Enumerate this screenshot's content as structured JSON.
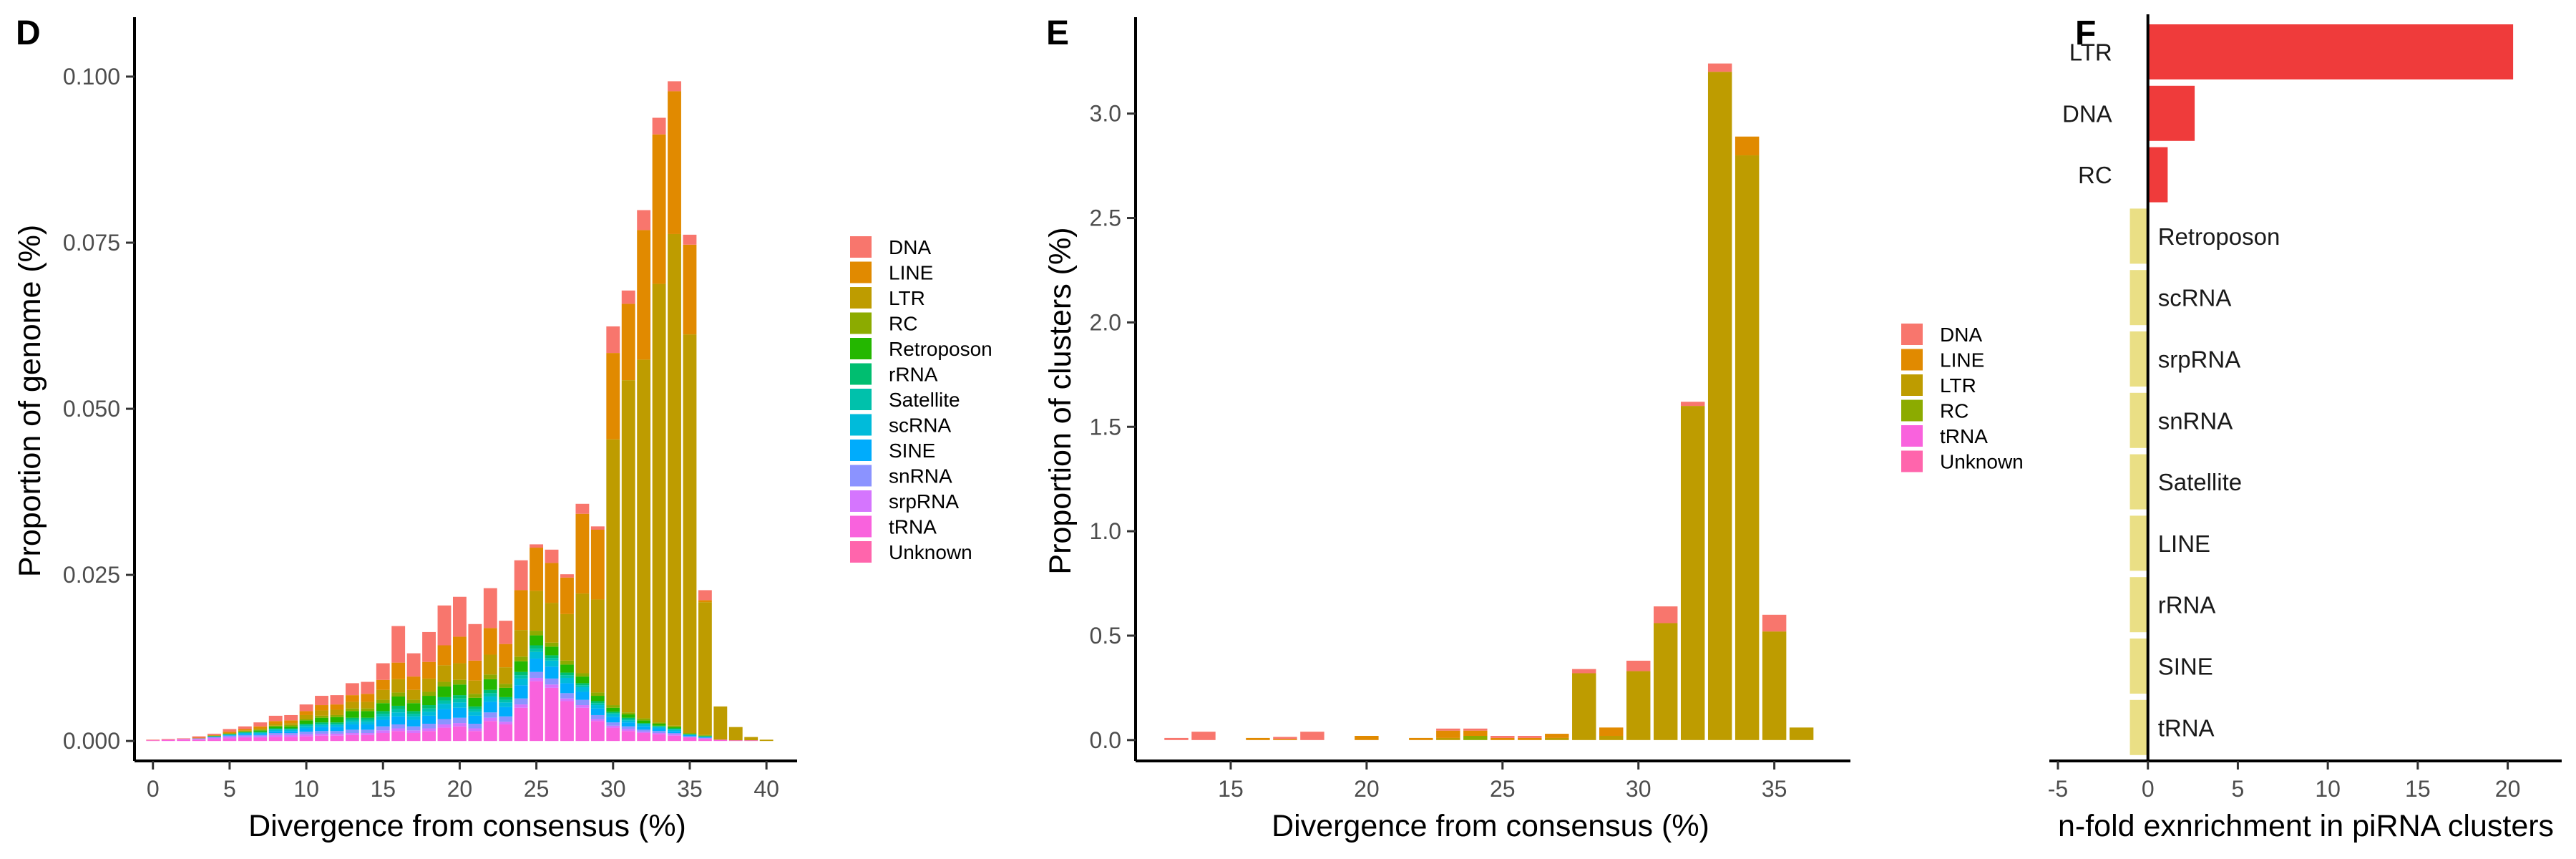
{
  "panels": {
    "D": "D",
    "E": "E",
    "F": "F"
  },
  "colors": {
    "DNA": "#F8766D",
    "LINE": "#E18A00",
    "LTR": "#BE9C00",
    "RC": "#8CAB00",
    "Retroposon": "#24B700",
    "rRNA": "#00BE70",
    "Satellite": "#00C1AB",
    "scRNA": "#00BBDA",
    "SINE": "#00ACFC",
    "snRNA": "#8B93FF",
    "srpRNA": "#D575FE",
    "tRNA": "#F962DD",
    "Unknown": "#FF65AC",
    "enriched": "#EF3B3B",
    "depleted": "#EADF85"
  },
  "chart_data": [
    {
      "panel": "D",
      "type": "bar",
      "stacked": true,
      "xlabel": "Divergence from consensus (%)",
      "ylabel": "Proportion of genome (%)",
      "xlim": [
        -1.2,
        42
      ],
      "ylim": [
        -0.003,
        0.107
      ],
      "xticks": [
        0,
        5,
        10,
        15,
        20,
        25,
        30,
        35,
        40
      ],
      "yticks": [
        0.0,
        0.025,
        0.05,
        0.075,
        0.1
      ],
      "ytick_labels": [
        "0.000",
        "0.025",
        "0.050",
        "0.075",
        "0.100"
      ],
      "legend": [
        "DNA",
        "LINE",
        "LTR",
        "RC",
        "Retroposon",
        "rRNA",
        "Satellite",
        "scRNA",
        "SINE",
        "snRNA",
        "srpRNA",
        "tRNA",
        "Unknown"
      ],
      "legend_position": "right",
      "x": [
        0,
        1,
        2,
        3,
        4,
        5,
        6,
        7,
        8,
        9,
        10,
        11,
        12,
        13,
        14,
        15,
        16,
        17,
        18,
        19,
        20,
        21,
        22,
        23,
        24,
        25,
        26,
        27,
        28,
        29,
        30,
        31,
        32,
        33,
        34,
        35,
        36,
        37,
        38,
        39,
        40
      ],
      "stack_order": [
        "tRNA",
        "srpRNA",
        "snRNA",
        "SINE",
        "scRNA",
        "Satellite",
        "rRNA",
        "Retroposon",
        "RC",
        "LTR",
        "LINE",
        "DNA"
      ],
      "series": [
        {
          "name": "tRNA",
          "values": [
            0.0001,
            0.0002,
            0.0002,
            0.0002,
            0.0003,
            0.0004,
            0.0005,
            0.0005,
            0.0006,
            0.0006,
            0.0007,
            0.0008,
            0.0008,
            0.0009,
            0.0009,
            0.0012,
            0.0015,
            0.0012,
            0.0015,
            0.002,
            0.0022,
            0.0015,
            0.003,
            0.0025,
            0.005,
            0.009,
            0.008,
            0.006,
            0.005,
            0.003,
            0.002,
            0.0015,
            0.0012,
            0.001,
            0.0008,
            0.0005,
            0.0003,
            0.0002,
            0.0001,
            0.0001,
            0.0
          ]
        },
        {
          "name": "srpRNA",
          "values": [
            0.0,
            0.0,
            0.0001,
            0.0001,
            0.0002,
            0.0002,
            0.0002,
            0.0002,
            0.0003,
            0.0003,
            0.0003,
            0.0003,
            0.0003,
            0.0003,
            0.0003,
            0.0004,
            0.0004,
            0.0004,
            0.0004,
            0.0005,
            0.0005,
            0.0004,
            0.0005,
            0.0004,
            0.0005,
            0.0005,
            0.0005,
            0.0004,
            0.0004,
            0.0003,
            0.0003,
            0.0003,
            0.0002,
            0.0002,
            0.0002,
            0.0001,
            0.0001,
            0.0,
            0.0,
            0.0,
            0.0
          ]
        },
        {
          "name": "snRNA",
          "values": [
            0.0,
            0.0,
            0.0,
            0.0001,
            0.0001,
            0.0002,
            0.0002,
            0.0002,
            0.0003,
            0.0003,
            0.0004,
            0.0004,
            0.0004,
            0.0005,
            0.0005,
            0.0006,
            0.0006,
            0.0006,
            0.0007,
            0.0008,
            0.0008,
            0.0007,
            0.0008,
            0.0008,
            0.0009,
            0.0009,
            0.0009,
            0.0008,
            0.0008,
            0.0006,
            0.0005,
            0.0004,
            0.0003,
            0.0003,
            0.0002,
            0.0001,
            0.0001,
            0.0,
            0.0,
            0.0,
            0.0
          ]
        },
        {
          "name": "SINE",
          "values": [
            0.0,
            0.0,
            0.0,
            0.0,
            0.0001,
            0.0001,
            0.0002,
            0.0002,
            0.0003,
            0.0003,
            0.0005,
            0.0006,
            0.0006,
            0.0008,
            0.0008,
            0.001,
            0.0012,
            0.001,
            0.0012,
            0.0015,
            0.0015,
            0.0012,
            0.0016,
            0.0014,
            0.002,
            0.002,
            0.0018,
            0.0015,
            0.0012,
            0.001,
            0.0008,
            0.0006,
            0.0005,
            0.0004,
            0.0003,
            0.0002,
            0.0001,
            0.0,
            0.0,
            0.0,
            0.0
          ]
        },
        {
          "name": "scRNA",
          "values": [
            0.0,
            0.0,
            0.0,
            0.0,
            0.0,
            0.0001,
            0.0001,
            0.0001,
            0.0002,
            0.0002,
            0.0003,
            0.0003,
            0.0003,
            0.0004,
            0.0004,
            0.0005,
            0.0006,
            0.0005,
            0.0006,
            0.0008,
            0.0008,
            0.0006,
            0.0008,
            0.0007,
            0.001,
            0.001,
            0.0009,
            0.0008,
            0.0007,
            0.0005,
            0.0004,
            0.0003,
            0.0003,
            0.0002,
            0.0002,
            0.0001,
            0.0001,
            0.0,
            0.0,
            0.0,
            0.0
          ]
        },
        {
          "name": "Satellite",
          "values": [
            0.0,
            0.0,
            0.0,
            0.0,
            0.0,
            0.0,
            0.0001,
            0.0001,
            0.0001,
            0.0001,
            0.0002,
            0.0002,
            0.0002,
            0.0003,
            0.0003,
            0.0004,
            0.0005,
            0.0004,
            0.0005,
            0.0005,
            0.0006,
            0.0004,
            0.0005,
            0.0004,
            0.0005,
            0.0005,
            0.0004,
            0.0004,
            0.0003,
            0.0003,
            0.0002,
            0.0002,
            0.0001,
            0.0001,
            0.0001,
            0.0,
            0.0,
            0.0,
            0.0,
            0.0,
            0.0
          ]
        },
        {
          "name": "rRNA",
          "values": [
            0.0,
            0.0,
            0.0,
            0.0,
            0.0,
            0.0,
            0.0,
            0.0001,
            0.0001,
            0.0001,
            0.0002,
            0.0002,
            0.0002,
            0.0003,
            0.0003,
            0.0004,
            0.0005,
            0.0004,
            0.0005,
            0.0005,
            0.0005,
            0.0004,
            0.0005,
            0.0004,
            0.0005,
            0.0005,
            0.0004,
            0.0004,
            0.0003,
            0.0003,
            0.0002,
            0.0002,
            0.0001,
            0.0001,
            0.0001,
            0.0,
            0.0,
            0.0,
            0.0,
            0.0,
            0.0
          ]
        },
        {
          "name": "Retroposon",
          "values": [
            0.0,
            0.0,
            0.0,
            0.0,
            0.0001,
            0.0001,
            0.0001,
            0.0002,
            0.0003,
            0.0003,
            0.0005,
            0.0007,
            0.0008,
            0.001,
            0.001,
            0.0012,
            0.0014,
            0.0012,
            0.0014,
            0.0016,
            0.0016,
            0.0013,
            0.0016,
            0.0014,
            0.0016,
            0.0015,
            0.0013,
            0.0012,
            0.001,
            0.0008,
            0.0006,
            0.0005,
            0.0004,
            0.0003,
            0.0002,
            0.0001,
            0.0001,
            0.0,
            0.0,
            0.0,
            0.0
          ]
        },
        {
          "name": "RC",
          "values": [
            0.0,
            0.0,
            0.0,
            0.0,
            0.0,
            0.0,
            0.0001,
            0.0001,
            0.0001,
            0.0002,
            0.0002,
            0.0003,
            0.0003,
            0.0004,
            0.0004,
            0.0005,
            0.0006,
            0.0005,
            0.0006,
            0.0007,
            0.0007,
            0.0006,
            0.0007,
            0.0006,
            0.0007,
            0.0007,
            0.0006,
            0.0006,
            0.0005,
            0.0005,
            0.0004,
            0.0003,
            0.0003,
            0.0002,
            0.0002,
            0.0001,
            0.0001,
            0.0,
            0.0,
            0.0,
            0.0
          ]
        },
        {
          "name": "LTR",
          "values": [
            0.0,
            0.0,
            0.0,
            0.0,
            0.0,
            0.0001,
            0.0001,
            0.0002,
            0.0003,
            0.0003,
            0.0006,
            0.0008,
            0.0008,
            0.001,
            0.001,
            0.0015,
            0.002,
            0.0015,
            0.002,
            0.0025,
            0.0025,
            0.002,
            0.003,
            0.0025,
            0.004,
            0.006,
            0.006,
            0.007,
            0.012,
            0.014,
            0.04,
            0.05,
            0.054,
            0.066,
            0.074,
            0.06,
            0.02,
            0.005,
            0.002,
            0.0005,
            0.0002
          ]
        },
        {
          "name": "LINE",
          "values": [
            0.0,
            0.0,
            0.0,
            0.0001,
            0.0001,
            0.0002,
            0.0002,
            0.0003,
            0.0004,
            0.0004,
            0.0006,
            0.0008,
            0.0008,
            0.001,
            0.0012,
            0.0015,
            0.0025,
            0.002,
            0.0025,
            0.003,
            0.004,
            0.003,
            0.004,
            0.0035,
            0.006,
            0.0065,
            0.006,
            0.0055,
            0.012,
            0.0105,
            0.013,
            0.0115,
            0.0195,
            0.0225,
            0.0215,
            0.0135,
            0.0003,
            0.0,
            0.0,
            0.0,
            0.0
          ]
        },
        {
          "name": "DNA",
          "values": [
            0.0001,
            0.0001,
            0.0001,
            0.0002,
            0.0002,
            0.0004,
            0.0004,
            0.0006,
            0.0008,
            0.0008,
            0.001,
            0.0014,
            0.0014,
            0.0018,
            0.0018,
            0.0025,
            0.0055,
            0.0035,
            0.0045,
            0.006,
            0.006,
            0.0055,
            0.006,
            0.0035,
            0.0045,
            0.0005,
            0.002,
            0.0005,
            0.0015,
            0.0005,
            0.004,
            0.002,
            0.003,
            0.0025,
            0.0015,
            0.0015,
            0.0015,
            0.0,
            0.0,
            0.0,
            0.0
          ]
        }
      ]
    },
    {
      "panel": "E",
      "type": "bar",
      "stacked": true,
      "xlabel": "Divergence from consensus (%)",
      "ylabel": "Proportion of clusters (%)",
      "xlim": [
        11.5,
        37.8
      ],
      "ylim": [
        -0.1,
        3.4
      ],
      "xticks": [
        15,
        20,
        25,
        30,
        35
      ],
      "yticks": [
        0.0,
        0.5,
        1.0,
        1.5,
        2.0,
        2.5,
        3.0
      ],
      "ytick_labels": [
        "0.0",
        "0.5",
        "1.0",
        "1.5",
        "2.0",
        "2.5",
        "3.0"
      ],
      "legend": [
        "DNA",
        "LINE",
        "LTR",
        "RC",
        "tRNA",
        "Unknown"
      ],
      "legend_position": "right",
      "x": [
        13,
        14,
        16,
        17,
        18,
        20,
        22,
        23,
        24,
        25,
        26,
        27,
        28,
        29,
        30,
        31,
        32,
        33,
        34,
        35,
        36
      ],
      "stack_order": [
        "tRNA",
        "RC",
        "LTR",
        "LINE",
        "DNA"
      ],
      "series": [
        {
          "name": "tRNA",
          "values": [
            0.0,
            0.0,
            0.0,
            0.0,
            0.0,
            0.0,
            0.0,
            0.0,
            0.0,
            0.0,
            0.0,
            0.0,
            0.0,
            0.0,
            0.0,
            0.0,
            0.0,
            0.0,
            0.0,
            0.0,
            0.0
          ]
        },
        {
          "name": "RC",
          "values": [
            0.0,
            0.0,
            0.0,
            0.0,
            0.0,
            0.0,
            0.0,
            0.0,
            0.02,
            0.0,
            0.0,
            0.0,
            0.0,
            0.0,
            0.0,
            0.0,
            0.0,
            0.0,
            0.0,
            0.0,
            0.0
          ]
        },
        {
          "name": "LTR",
          "values": [
            0.0,
            0.0,
            0.0,
            0.0,
            0.0,
            0.0,
            0.0,
            0.01,
            0.0,
            0.0,
            0.0,
            0.01,
            0.32,
            0.02,
            0.33,
            0.56,
            1.6,
            3.2,
            2.8,
            0.52,
            0.06
          ]
        },
        {
          "name": "LINE",
          "values": [
            0.0,
            0.0,
            0.01,
            0.005,
            0.0,
            0.02,
            0.01,
            0.035,
            0.025,
            0.01,
            0.01,
            0.02,
            0.0,
            0.04,
            0.0,
            0.0,
            0.0,
            0.0,
            0.09,
            0.0,
            0.0
          ]
        },
        {
          "name": "DNA",
          "values": [
            0.01,
            0.04,
            0.0,
            0.01,
            0.04,
            0.0,
            0.0,
            0.01,
            0.01,
            0.01,
            0.01,
            0.0,
            0.02,
            0.0,
            0.05,
            0.08,
            0.02,
            0.04,
            0.0,
            0.08,
            0.0
          ]
        }
      ]
    },
    {
      "panel": "F",
      "type": "bar",
      "orientation": "horizontal",
      "xlabel": "n-fold exnrichment in piRNA clusters",
      "ylabel": "",
      "xlim": [
        -5,
        23
      ],
      "xticks": [
        -5,
        0,
        5,
        10,
        15,
        20
      ],
      "xtick_labels": [
        "-5",
        "0",
        "5",
        "10",
        "15",
        "20"
      ],
      "categories": [
        "LTR",
        "DNA",
        "RC",
        "Retroposon",
        "scRNA",
        "srpRNA",
        "snRNA",
        "Satellite",
        "LINE",
        "rRNA",
        "SINE",
        "tRNA"
      ],
      "values": [
        20.3,
        2.6,
        1.1,
        -1.0,
        -1.0,
        -1.0,
        -1.0,
        -1.0,
        -1.0,
        -1.0,
        -1.0,
        -1.0
      ]
    }
  ]
}
